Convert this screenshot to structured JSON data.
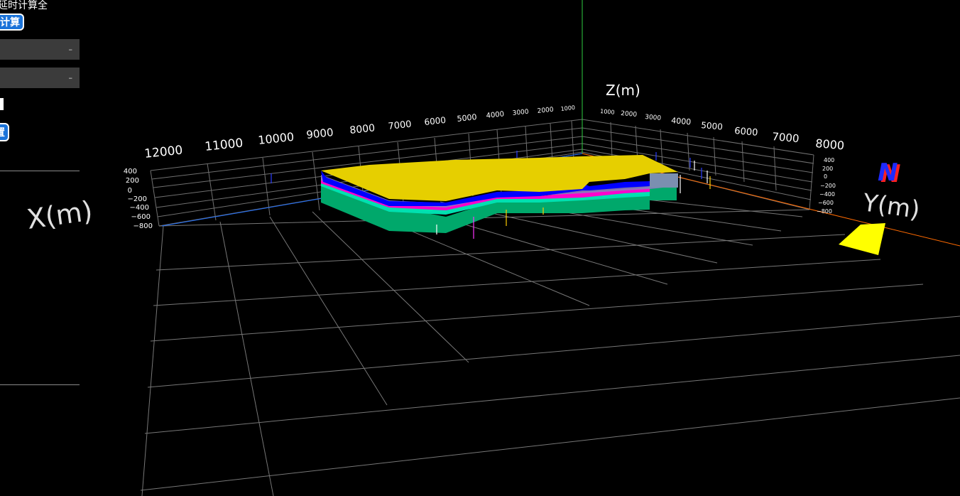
{
  "panel": {
    "title": "延时计算全",
    "calc_button": "计算",
    "select_1_value": "",
    "select_2_value": "",
    "select_arrow": "–",
    "settings_button": "置"
  },
  "axes": {
    "z_label": "Z(m)",
    "x_label": "X(m)",
    "y_label": "Y(m)",
    "x_ticks": [
      "12000",
      "11000",
      "10000",
      "9000",
      "8000",
      "7000",
      "6000",
      "5000",
      "4000",
      "3000",
      "2000",
      "1000"
    ],
    "y_ticks": [
      "1000",
      "2000",
      "3000",
      "4000",
      "5000",
      "6000",
      "7000",
      "8000"
    ],
    "z_ticks": [
      "400",
      "200",
      "0",
      "−200",
      "−400",
      "−600",
      "−800"
    ]
  },
  "compass": {
    "north_label": "N"
  },
  "colors": {
    "background": "#000000",
    "grid": "#8c8c8c",
    "layer_top": "#e6cf00",
    "layer_blue": "#0000ff",
    "layer_green": "#00a86b",
    "layer_cyan": "#00e0b0",
    "layer_magenta": "#ff00cc",
    "axis_x": "#1e6fff",
    "axis_y": "#ff6a00",
    "axis_z": "#2ecc40",
    "compass_fill": "#ffff00"
  }
}
